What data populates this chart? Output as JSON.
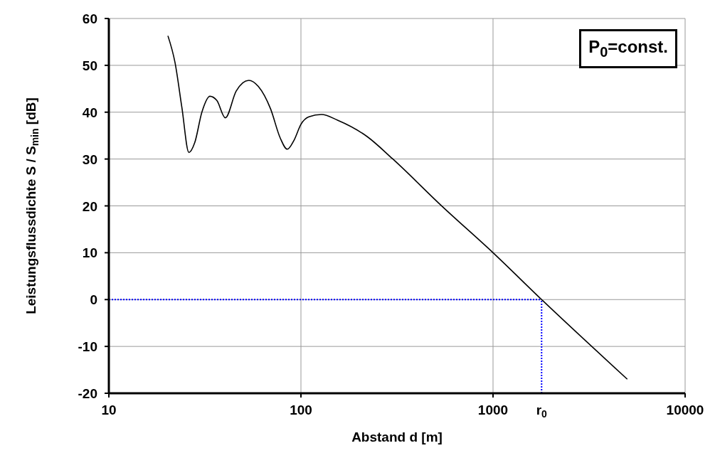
{
  "chart_data": {
    "type": "line",
    "xlabel": "Abstand d [m]",
    "ylabel": "Leistungsflussdichte S / S$_{min}$  [dB]",
    "annotations": [
      "P$_{0}$=const.",
      {
        "text": "r$_{0}$",
        "x": 1790,
        "y": -20
      }
    ],
    "x": [
      20.3,
      22.1,
      24,
      26.1,
      28,
      30.5,
      33.6,
      36.5,
      40.4,
      46,
      53.5,
      60,
      69.5,
      78,
      84.9,
      92,
      100,
      110,
      128,
      155,
      221,
      299,
      543,
      1000,
      1790,
      5000
    ],
    "series": [
      {
        "color": "#000000",
        "values": [
          56.3,
          50.6,
          41,
          31.4,
          33.5,
          40,
          43.4,
          42.5,
          38.8,
          44.5,
          46.8,
          45.5,
          40.7,
          34.5,
          32.1,
          34,
          37.4,
          39,
          39.5,
          38.3,
          34.8,
          30.1,
          19.9,
          10,
          0,
          -17
        ]
      }
    ],
    "xlim": [
      10,
      10000
    ],
    "xticks": [
      10,
      100,
      1000,
      10000
    ],
    "ylim": [
      -20,
      60
    ],
    "yticks": [
      -20,
      -10,
      0,
      10,
      20,
      30,
      40,
      50,
      60
    ],
    "log": "x",
    "grid": true,
    "marker": "none",
    "line_style": "solid",
    "ref_lines": [
      {
        "axis": "y",
        "value": 0,
        "color": "#0000ff",
        "line_style": "dotted"
      },
      {
        "axis": "x",
        "value": 1790,
        "color": "#0000ff",
        "line_style": "dotted"
      }
    ]
  }
}
